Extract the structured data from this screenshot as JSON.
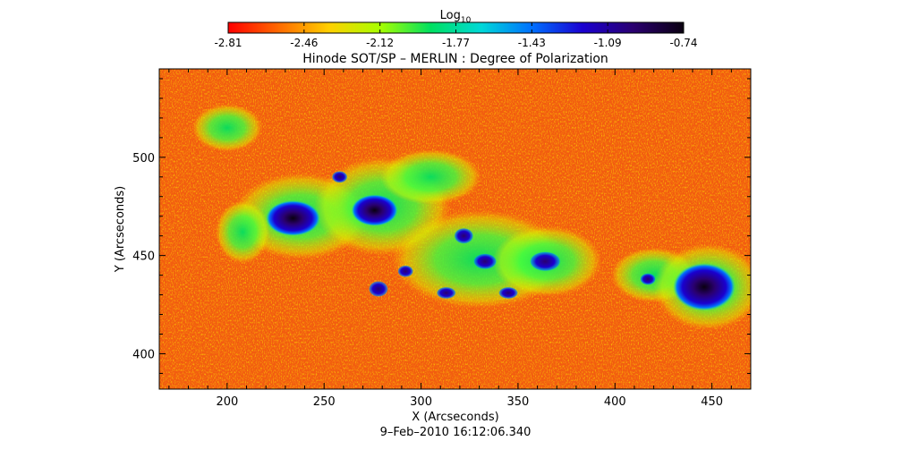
{
  "chart_data": {
    "type": "heatmap",
    "title": "Hinode SOT/SP – MERLIN : Degree of Polarization",
    "colorbar": {
      "label_main": "Log",
      "label_sub": "10",
      "ticks": [
        "-2.81",
        "-2.46",
        "-2.12",
        "-1.77",
        "-1.43",
        "-1.09",
        "-0.74"
      ],
      "min": -2.81,
      "max": -0.74,
      "colors": [
        "#ff0000",
        "#ff6a00",
        "#ffd000",
        "#a8ff00",
        "#00e060",
        "#00d8d8",
        "#0070ff",
        "#1a00d0",
        "#2a0070",
        "#0a0010"
      ]
    },
    "xlabel": "X (Arcseconds)",
    "ylabel": "Y (Arcseconds)",
    "xlim": [
      165,
      470
    ],
    "ylim": [
      382,
      545
    ],
    "xticks": [
      {
        "value": 200,
        "label": "200"
      },
      {
        "value": 250,
        "label": "250"
      },
      {
        "value": 300,
        "label": "300"
      },
      {
        "value": 350,
        "label": "350"
      },
      {
        "value": 400,
        "label": "400"
      },
      {
        "value": 450,
        "label": "450"
      }
    ],
    "yticks": [
      {
        "value": 400,
        "label": "400"
      },
      {
        "value": 450,
        "label": "450"
      },
      {
        "value": 500,
        "label": "500"
      }
    ],
    "features": [
      {
        "type": "spot",
        "x": 234,
        "y": 469,
        "rx": 14,
        "ry": 9
      },
      {
        "type": "spot",
        "x": 276,
        "y": 473,
        "rx": 12,
        "ry": 8
      },
      {
        "type": "spot",
        "x": 446,
        "y": 434,
        "rx": 16,
        "ry": 12
      },
      {
        "type": "pore",
        "x": 278,
        "y": 433,
        "rx": 5,
        "ry": 4
      },
      {
        "type": "pore",
        "x": 292,
        "y": 442,
        "rx": 4,
        "ry": 3
      },
      {
        "type": "pore",
        "x": 313,
        "y": 431,
        "rx": 5,
        "ry": 3
      },
      {
        "type": "pore",
        "x": 333,
        "y": 447,
        "rx": 6,
        "ry": 4
      },
      {
        "type": "pore",
        "x": 345,
        "y": 431,
        "rx": 5,
        "ry": 3
      },
      {
        "type": "pore",
        "x": 364,
        "y": 447,
        "rx": 8,
        "ry": 5
      },
      {
        "type": "pore",
        "x": 322,
        "y": 460,
        "rx": 5,
        "ry": 4
      },
      {
        "type": "pore",
        "x": 417,
        "y": 438,
        "rx": 4,
        "ry": 3
      },
      {
        "type": "pore",
        "x": 258,
        "y": 490,
        "rx": 4,
        "ry": 3
      },
      {
        "type": "plage",
        "x": 238,
        "y": 470,
        "rx": 35,
        "ry": 22
      },
      {
        "type": "plage",
        "x": 280,
        "y": 475,
        "rx": 35,
        "ry": 25
      },
      {
        "type": "plage",
        "x": 330,
        "y": 448,
        "rx": 45,
        "ry": 25
      },
      {
        "type": "plage",
        "x": 365,
        "y": 447,
        "rx": 28,
        "ry": 18
      },
      {
        "type": "plage",
        "x": 420,
        "y": 440,
        "rx": 22,
        "ry": 14
      },
      {
        "type": "plage",
        "x": 448,
        "y": 434,
        "rx": 28,
        "ry": 22
      },
      {
        "type": "plage",
        "x": 200,
        "y": 515,
        "rx": 18,
        "ry": 12
      },
      {
        "type": "plage",
        "x": 208,
        "y": 462,
        "rx": 14,
        "ry": 16
      },
      {
        "type": "plage",
        "x": 305,
        "y": 490,
        "rx": 26,
        "ry": 14
      }
    ],
    "date": "9–Feb–2010 16:12:06.340"
  }
}
